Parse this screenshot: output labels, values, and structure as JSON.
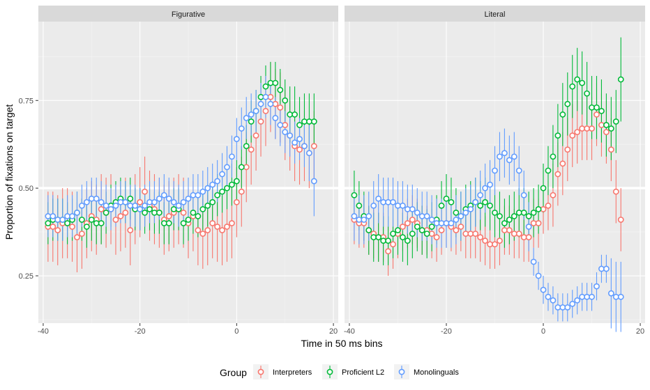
{
  "chart_data": {
    "type": "scatter",
    "subtype": "point-range",
    "xlabel": "Time in 50 ms bins",
    "ylabel": "Proportion of fixations on target",
    "xlim": [
      -41,
      21
    ],
    "ylim": [
      0.115,
      0.975
    ],
    "x_ticks": [
      -40,
      -20,
      0,
      20
    ],
    "y_ticks": [
      0.25,
      0.5,
      0.75
    ],
    "x_tick_labels": [
      "-40",
      "-20",
      "0",
      "20"
    ],
    "y_tick_labels": [
      "0.25",
      "0.50",
      "0.75"
    ],
    "reference_line_y": 0.5,
    "grid": true,
    "legend": {
      "title": "Group",
      "position": "bottom"
    },
    "series_styles": [
      {
        "name": "Interpreters",
        "color": "#F8766D"
      },
      {
        "name": "Proficient L2",
        "color": "#00BA38"
      },
      {
        "name": "Monolinguals",
        "color": "#619CFF"
      }
    ],
    "panels": [
      {
        "label": "Figurative",
        "x_start": -39,
        "series": [
          {
            "name": "Interpreters",
            "y": [
              0.39,
              0.39,
              0.38,
              0.4,
              0.4,
              0.39,
              0.36,
              0.37,
              0.4,
              0.42,
              0.41,
              0.44,
              0.43,
              0.44,
              0.41,
              0.42,
              0.43,
              0.38,
              0.44,
              0.46,
              0.49,
              0.45,
              0.44,
              0.43,
              0.41,
              0.42,
              0.43,
              0.44,
              0.43,
              0.4,
              0.42,
              0.38,
              0.37,
              0.38,
              0.4,
              0.39,
              0.38,
              0.39,
              0.4,
              0.46,
              0.49,
              0.56,
              0.61,
              0.65,
              0.69,
              0.72,
              0.76,
              0.74,
              0.73,
              0.68,
              0.65,
              0.62,
              0.61,
              0.62,
              0.6,
              0.62
            ],
            "err": [
              0.1,
              0.1,
              0.1,
              0.1,
              0.1,
              0.1,
              0.1,
              0.1,
              0.1,
              0.1,
              0.1,
              0.1,
              0.1,
              0.1,
              0.1,
              0.1,
              0.1,
              0.1,
              0.1,
              0.1,
              0.1,
              0.1,
              0.1,
              0.1,
              0.1,
              0.1,
              0.1,
              0.1,
              0.1,
              0.1,
              0.1,
              0.1,
              0.1,
              0.1,
              0.1,
              0.1,
              0.1,
              0.1,
              0.1,
              0.1,
              0.1,
              0.1,
              0.1,
              0.1,
              0.1,
              0.1,
              0.1,
              0.1,
              0.1,
              0.1,
              0.1,
              0.1,
              0.1,
              0.1,
              0.1,
              0.1
            ]
          },
          {
            "name": "Proficient L2",
            "y": [
              0.4,
              0.41,
              0.41,
              0.41,
              0.4,
              0.41,
              0.43,
              0.41,
              0.39,
              0.41,
              0.4,
              0.4,
              0.43,
              0.45,
              0.46,
              0.47,
              0.46,
              0.47,
              0.44,
              0.44,
              0.43,
              0.44,
              0.43,
              0.43,
              0.4,
              0.4,
              0.44,
              0.44,
              0.4,
              0.41,
              0.43,
              0.42,
              0.44,
              0.45,
              0.46,
              0.48,
              0.49,
              0.5,
              0.51,
              0.52,
              0.56,
              0.62,
              0.69,
              0.72,
              0.76,
              0.79,
              0.8,
              0.8,
              0.78,
              0.75,
              0.71,
              0.71,
              0.68,
              0.69,
              0.69,
              0.69
            ],
            "err": [
              0.06,
              0.06,
              0.06,
              0.06,
              0.06,
              0.06,
              0.06,
              0.06,
              0.06,
              0.06,
              0.06,
              0.06,
              0.06,
              0.06,
              0.06,
              0.06,
              0.06,
              0.06,
              0.06,
              0.06,
              0.06,
              0.06,
              0.06,
              0.06,
              0.06,
              0.06,
              0.06,
              0.06,
              0.06,
              0.06,
              0.06,
              0.06,
              0.06,
              0.06,
              0.06,
              0.06,
              0.06,
              0.06,
              0.06,
              0.06,
              0.06,
              0.06,
              0.06,
              0.06,
              0.06,
              0.06,
              0.06,
              0.06,
              0.06,
              0.06,
              0.08,
              0.08,
              0.08,
              0.08,
              0.08,
              0.08
            ]
          },
          {
            "name": "Monolinguals",
            "y": [
              0.42,
              0.42,
              0.41,
              0.41,
              0.42,
              0.42,
              0.43,
              0.45,
              0.46,
              0.47,
              0.47,
              0.46,
              0.45,
              0.44,
              0.45,
              0.46,
              0.46,
              0.45,
              0.45,
              0.44,
              0.45,
              0.46,
              0.46,
              0.47,
              0.48,
              0.47,
              0.46,
              0.45,
              0.46,
              0.47,
              0.48,
              0.48,
              0.49,
              0.5,
              0.51,
              0.52,
              0.54,
              0.56,
              0.59,
              0.64,
              0.67,
              0.7,
              0.71,
              0.72,
              0.74,
              0.76,
              0.74,
              0.7,
              0.68,
              0.66,
              0.65,
              0.63,
              0.64,
              0.62,
              0.6,
              0.52
            ],
            "err": [
              0.06,
              0.06,
              0.06,
              0.06,
              0.06,
              0.06,
              0.06,
              0.06,
              0.06,
              0.06,
              0.06,
              0.06,
              0.06,
              0.06,
              0.06,
              0.06,
              0.06,
              0.06,
              0.06,
              0.06,
              0.06,
              0.06,
              0.06,
              0.06,
              0.06,
              0.06,
              0.06,
              0.06,
              0.06,
              0.06,
              0.06,
              0.06,
              0.06,
              0.06,
              0.06,
              0.06,
              0.06,
              0.06,
              0.06,
              0.06,
              0.06,
              0.06,
              0.06,
              0.06,
              0.06,
              0.06,
              0.06,
              0.06,
              0.06,
              0.06,
              0.06,
              0.06,
              0.06,
              0.06,
              0.08,
              0.1
            ]
          }
        ]
      },
      {
        "label": "Literal",
        "x_start": -39,
        "series": [
          {
            "name": "Interpreters",
            "y": [
              0.41,
              0.4,
              0.4,
              0.38,
              0.37,
              0.36,
              0.36,
              0.32,
              0.34,
              0.37,
              0.39,
              0.4,
              0.41,
              0.4,
              0.38,
              0.38,
              0.37,
              0.36,
              0.38,
              0.4,
              0.39,
              0.38,
              0.39,
              0.37,
              0.37,
              0.37,
              0.36,
              0.35,
              0.34,
              0.34,
              0.35,
              0.38,
              0.38,
              0.37,
              0.37,
              0.36,
              0.36,
              0.4,
              0.4,
              0.44,
              0.45,
              0.48,
              0.54,
              0.57,
              0.61,
              0.65,
              0.66,
              0.67,
              0.67,
              0.67,
              0.71,
              0.68,
              0.66,
              0.61,
              0.49,
              0.41
            ],
            "err": [
              0.07,
              0.07,
              0.07,
              0.07,
              0.07,
              0.07,
              0.07,
              0.07,
              0.07,
              0.07,
              0.07,
              0.07,
              0.07,
              0.07,
              0.07,
              0.07,
              0.07,
              0.07,
              0.07,
              0.07,
              0.07,
              0.07,
              0.07,
              0.07,
              0.07,
              0.07,
              0.07,
              0.07,
              0.07,
              0.07,
              0.07,
              0.07,
              0.07,
              0.07,
              0.07,
              0.07,
              0.07,
              0.07,
              0.07,
              0.07,
              0.07,
              0.09,
              0.09,
              0.09,
              0.09,
              0.09,
              0.09,
              0.09,
              0.09,
              0.09,
              0.09,
              0.09,
              0.09,
              0.09,
              0.09,
              0.09
            ]
          },
          {
            "name": "Proficient L2",
            "y": [
              0.48,
              0.45,
              0.42,
              0.38,
              0.36,
              0.36,
              0.35,
              0.35,
              0.37,
              0.38,
              0.36,
              0.35,
              0.37,
              0.39,
              0.38,
              0.37,
              0.39,
              0.41,
              0.45,
              0.47,
              0.46,
              0.43,
              0.42,
              0.44,
              0.45,
              0.46,
              0.45,
              0.46,
              0.45,
              0.43,
              0.42,
              0.4,
              0.41,
              0.42,
              0.43,
              0.43,
              0.42,
              0.43,
              0.44,
              0.5,
              0.55,
              0.59,
              0.65,
              0.71,
              0.74,
              0.79,
              0.81,
              0.8,
              0.77,
              0.73,
              0.73,
              0.72,
              0.68,
              0.67,
              0.69,
              0.81
            ],
            "err": [
              0.07,
              0.07,
              0.07,
              0.07,
              0.07,
              0.07,
              0.07,
              0.07,
              0.07,
              0.07,
              0.07,
              0.07,
              0.07,
              0.07,
              0.07,
              0.07,
              0.07,
              0.07,
              0.07,
              0.07,
              0.07,
              0.07,
              0.07,
              0.07,
              0.07,
              0.07,
              0.07,
              0.07,
              0.07,
              0.07,
              0.07,
              0.07,
              0.07,
              0.07,
              0.07,
              0.07,
              0.07,
              0.07,
              0.07,
              0.07,
              0.07,
              0.09,
              0.09,
              0.09,
              0.09,
              0.09,
              0.09,
              0.09,
              0.09,
              0.09,
              0.09,
              0.09,
              0.09,
              0.09,
              0.09,
              0.12
            ]
          },
          {
            "name": "Monolinguals",
            "y": [
              0.42,
              0.41,
              0.41,
              0.42,
              0.45,
              0.47,
              0.46,
              0.46,
              0.46,
              0.45,
              0.45,
              0.44,
              0.44,
              0.43,
              0.42,
              0.42,
              0.41,
              0.4,
              0.4,
              0.4,
              0.4,
              0.41,
              0.42,
              0.43,
              0.44,
              0.46,
              0.48,
              0.5,
              0.51,
              0.55,
              0.59,
              0.6,
              0.58,
              0.59,
              0.55,
              0.48,
              0.39,
              0.29,
              0.25,
              0.21,
              0.19,
              0.18,
              0.16,
              0.16,
              0.16,
              0.17,
              0.18,
              0.19,
              0.19,
              0.19,
              0.22,
              0.27,
              0.27,
              0.2,
              0.19,
              0.19
            ],
            "err": [
              0.07,
              0.07,
              0.07,
              0.07,
              0.07,
              0.07,
              0.07,
              0.07,
              0.07,
              0.07,
              0.07,
              0.07,
              0.07,
              0.07,
              0.07,
              0.07,
              0.07,
              0.07,
              0.07,
              0.07,
              0.07,
              0.07,
              0.07,
              0.07,
              0.07,
              0.07,
              0.07,
              0.07,
              0.07,
              0.07,
              0.07,
              0.07,
              0.07,
              0.07,
              0.07,
              0.07,
              0.07,
              0.04,
              0.04,
              0.04,
              0.04,
              0.04,
              0.04,
              0.04,
              0.04,
              0.04,
              0.04,
              0.04,
              0.04,
              0.04,
              0.04,
              0.04,
              0.04,
              0.1,
              0.1,
              0.1
            ]
          }
        ]
      }
    ]
  }
}
